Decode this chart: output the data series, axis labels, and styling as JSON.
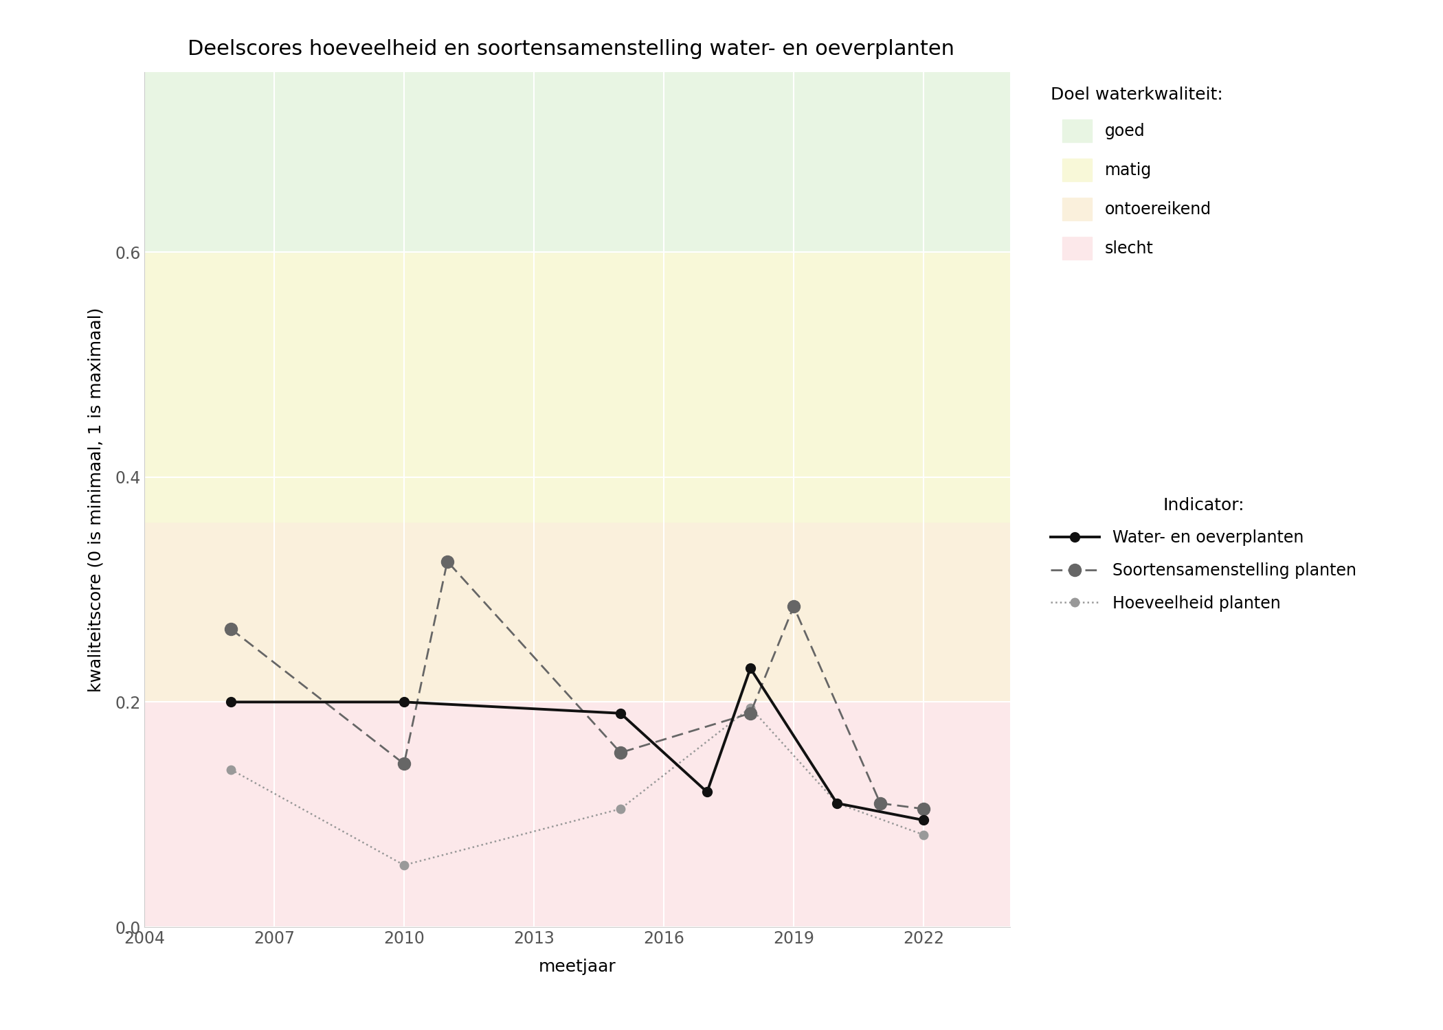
{
  "title": "Deelscores hoeveelheid en soortensamenstelling water- en oeverplanten",
  "xlabel": "meetjaar",
  "ylabel": "kwaliteitscore (0 is minimaal, 1 is maximaal)",
  "xlim": [
    2004,
    2024
  ],
  "ylim": [
    0.0,
    0.76
  ],
  "yticks": [
    0.0,
    0.2,
    0.4,
    0.6
  ],
  "xticks": [
    2004,
    2007,
    2010,
    2013,
    2016,
    2019,
    2022
  ],
  "zone_good_min": 0.6,
  "zone_good_max": 0.76,
  "zone_good_color": "#e8f5e3",
  "zone_matig_min": 0.36,
  "zone_matig_max": 0.6,
  "zone_matig_color": "#f8f8d8",
  "zone_ontoereikend_min": 0.2,
  "zone_ontoereikend_max": 0.36,
  "zone_ontoereikend_color": "#faf0dc",
  "zone_slecht_min": 0.0,
  "zone_slecht_max": 0.2,
  "zone_slecht_color": "#fce8ea",
  "water_x": [
    2006,
    2010,
    2015,
    2017,
    2018,
    2020,
    2022
  ],
  "water_y": [
    0.2,
    0.2,
    0.19,
    0.12,
    0.23,
    0.11,
    0.095
  ],
  "soorten_x": [
    2006,
    2010,
    2011,
    2015,
    2018,
    2019,
    2021,
    2022
  ],
  "soorten_y": [
    0.265,
    0.145,
    0.325,
    0.155,
    0.19,
    0.285,
    0.11,
    0.105
  ],
  "hoeveelheid_x": [
    2006,
    2010,
    2015,
    2018,
    2020,
    2022
  ],
  "hoeveelheid_y": [
    0.14,
    0.055,
    0.105,
    0.195,
    0.11,
    0.082
  ],
  "water_color": "#111111",
  "soorten_color": "#666666",
  "hoeveelheid_color": "#999999",
  "legend_title_doel": "Doel waterkwaliteit:",
  "legend_title_indicator": "Indicator:",
  "legend_labels_doel": [
    "goed",
    "matig",
    "ontoereikend",
    "slecht"
  ],
  "legend_labels_indicator": [
    "Water- en oeverplanten",
    "Soortensamenstelling planten",
    "Hoeveelheid planten"
  ],
  "title_fontsize": 22,
  "axis_label_fontsize": 18,
  "tick_fontsize": 17,
  "legend_fontsize": 17,
  "legend_title_fontsize": 18
}
